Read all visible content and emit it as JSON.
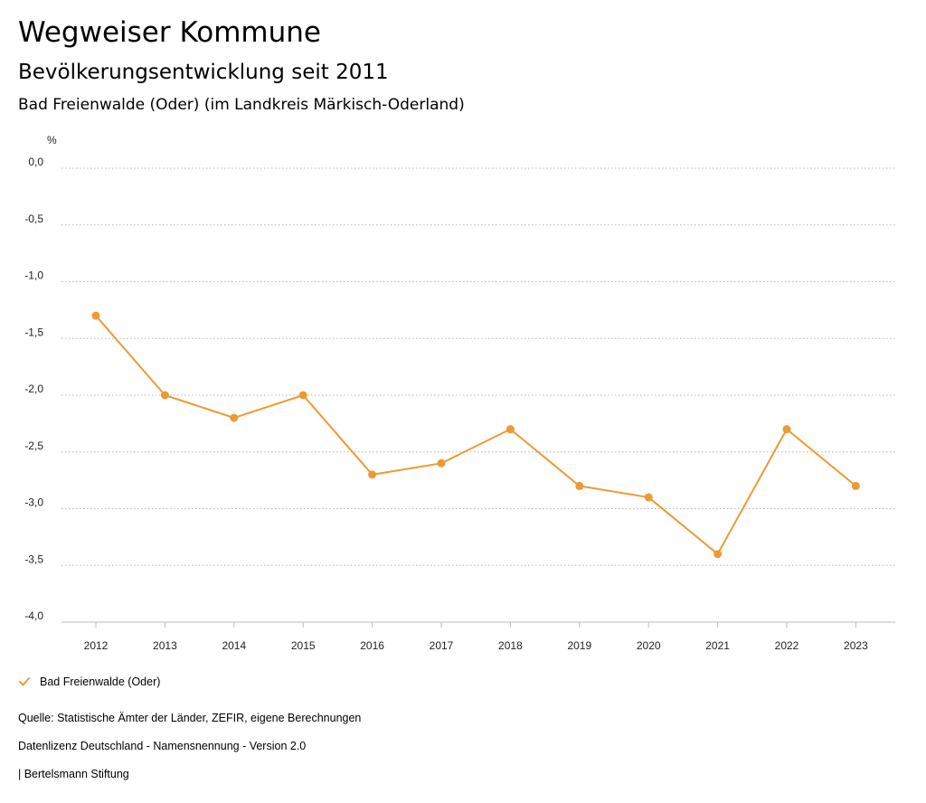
{
  "header": {
    "title": "Wegweiser Kommune",
    "subtitle": "Bevölkerungsentwicklung seit 2011",
    "region": "Bad Freienwalde (Oder) (im Landkreis Märkisch-Oderland)"
  },
  "chart_data": {
    "type": "line",
    "ylabel": "%",
    "ylim": [
      -4.0,
      0.0
    ],
    "y_ticks": [
      0.0,
      -0.5,
      -1.0,
      -1.5,
      -2.0,
      -2.5,
      -3.0,
      -3.5,
      -4.0
    ],
    "y_tick_labels": [
      "0,0",
      "-0,5",
      "-1,0",
      "-1,5",
      "-2,0",
      "-2,5",
      "-3,0",
      "-3,5",
      "-4,0"
    ],
    "categories": [
      "2012",
      "2013",
      "2014",
      "2015",
      "2016",
      "2017",
      "2018",
      "2019",
      "2020",
      "2021",
      "2022",
      "2023"
    ],
    "series": [
      {
        "name": "Bad Freienwalde (Oder)",
        "color": "#ec9a34",
        "values": [
          -1.3,
          -2.0,
          -2.2,
          -2.0,
          -2.7,
          -2.6,
          -2.3,
          -2.8,
          -2.9,
          -3.4,
          -2.3,
          -2.8
        ]
      }
    ],
    "grid": true,
    "legend_position": "bottom-left"
  },
  "footer": {
    "source": "Quelle: Statistische Ämter der Länder, ZEFIR, eigene Berechnungen",
    "license": "Datenlizenz Deutschland - Namensnennung - Version 2.0",
    "publisher": "| Bertelsmann Stiftung"
  }
}
